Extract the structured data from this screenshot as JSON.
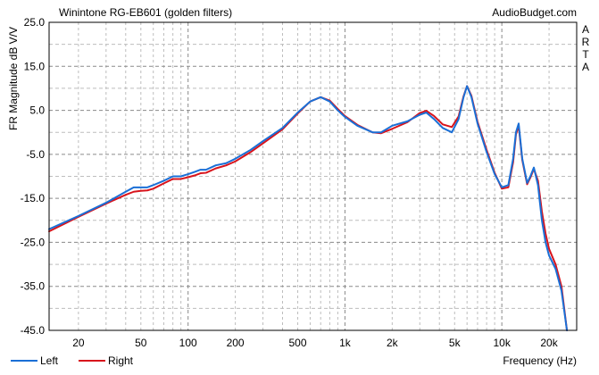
{
  "header": {
    "title": "Winintone RG-EB601 (golden filters)",
    "brand": "AudioBudget.com",
    "arta_letters": [
      "A",
      "R",
      "T",
      "A"
    ]
  },
  "axes": {
    "ylabel": "FR Magnitude dB V/V",
    "xlabel": "Frequency (Hz)"
  },
  "legend": {
    "left_label": "Left",
    "right_label": "Right"
  },
  "colors": {
    "left": "#1a6fd6",
    "right": "#d8141c",
    "grid_major": "#8a8a8a",
    "grid_minor": "#bdbdbd",
    "background": "#ffffff"
  },
  "chart_data": {
    "type": "line",
    "x_scale": "log",
    "xlim": [
      13,
      30000
    ],
    "ylim": [
      -45,
      25
    ],
    "y_ticks": [
      25.0,
      15.0,
      5.0,
      -5.0,
      -15.0,
      -25.0,
      -35.0,
      -45.0
    ],
    "y_tick_labels": [
      "25.0",
      "15.0",
      "5.0",
      "-5.0",
      "-15.0",
      "-25.0",
      "-35.0",
      "-45.0"
    ],
    "x_ticks": [
      20,
      50,
      100,
      200,
      500,
      1000,
      2000,
      5000,
      10000,
      20000
    ],
    "x_tick_labels": [
      "20",
      "50",
      "100",
      "200",
      "500",
      "1k",
      "2k",
      "5k",
      "10k",
      "20k"
    ],
    "grid": true,
    "legend_position": "bottom-left",
    "series": [
      {
        "name": "Left",
        "color": "#1a6fd6",
        "x": [
          13,
          20,
          30,
          40,
          45,
          50,
          55,
          60,
          70,
          80,
          90,
          100,
          110,
          120,
          130,
          150,
          175,
          200,
          250,
          300,
          400,
          500,
          600,
          700,
          800,
          900,
          1000,
          1200,
          1500,
          1700,
          2000,
          2500,
          3000,
          3300,
          3700,
          4200,
          4800,
          5300,
          5700,
          6000,
          6400,
          7000,
          8000,
          9000,
          10000,
          11000,
          11800,
          12300,
          12800,
          13500,
          14500,
          15200,
          16000,
          17000,
          18000,
          19000,
          20000,
          22000,
          24000,
          26000
        ],
        "y": [
          -22,
          -19,
          -16,
          -13.5,
          -12.5,
          -12.5,
          -12.5,
          -12,
          -11,
          -10,
          -10,
          -9.5,
          -9,
          -8.5,
          -8.5,
          -7.5,
          -7,
          -6,
          -4,
          -2,
          1,
          4.5,
          7,
          8,
          7,
          5,
          3.5,
          1.5,
          0,
          0,
          1.5,
          2.5,
          4,
          4.5,
          3,
          1,
          0,
          3,
          8,
          10.5,
          8,
          2,
          -4.5,
          -9.5,
          -12.5,
          -12,
          -6,
          0,
          2,
          -6,
          -11.5,
          -10,
          -8,
          -12,
          -20,
          -25,
          -28,
          -31,
          -36,
          -45
        ]
      },
      {
        "name": "Right",
        "color": "#d8141c",
        "x": [
          13,
          20,
          30,
          40,
          45,
          50,
          55,
          60,
          70,
          80,
          90,
          100,
          110,
          120,
          130,
          150,
          175,
          200,
          250,
          300,
          400,
          500,
          600,
          700,
          800,
          900,
          1000,
          1200,
          1500,
          1700,
          2000,
          2500,
          3000,
          3300,
          3700,
          4200,
          4800,
          5300,
          5700,
          6000,
          6400,
          7000,
          8000,
          9000,
          10000,
          11000,
          11800,
          12300,
          12800,
          13500,
          14500,
          15200,
          16000,
          17000,
          18000,
          19000,
          20000,
          22000,
          24000,
          26000
        ],
        "y": [
          -22.5,
          -19.2,
          -16.2,
          -14.2,
          -13.5,
          -13.3,
          -13.2,
          -12.8,
          -11.6,
          -10.6,
          -10.6,
          -10.2,
          -9.8,
          -9.3,
          -9.2,
          -8.2,
          -7.5,
          -6.6,
          -4.5,
          -2.5,
          0.7,
          4.3,
          7,
          8,
          7.2,
          5.3,
          3.7,
          1.7,
          0,
          -0.2,
          0.8,
          2.3,
          4.4,
          4.9,
          3.7,
          1.8,
          1.2,
          3.6,
          8.2,
          10.5,
          8.3,
          2.4,
          -4,
          -9.2,
          -12.8,
          -12.5,
          -6.8,
          -0.5,
          1.5,
          -6.3,
          -11.8,
          -10.3,
          -8.3,
          -11,
          -18,
          -23,
          -26.5,
          -30,
          -35,
          -45
        ]
      }
    ]
  }
}
